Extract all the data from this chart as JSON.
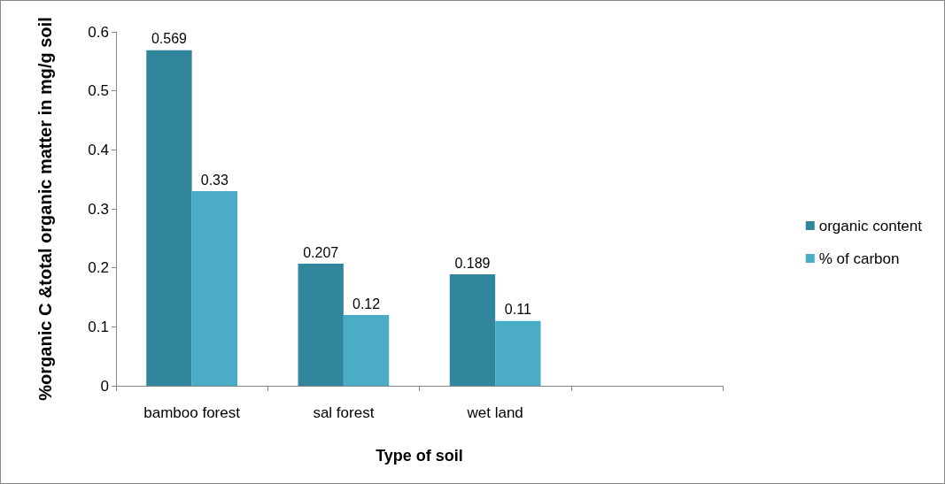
{
  "chart_data": {
    "type": "bar",
    "xlabel": "Type of soil",
    "ylabel": "%organic C &total organic matter in mg/g soil",
    "categories": [
      "bamboo forest",
      "sal forest",
      "wet land",
      null
    ],
    "series": [
      {
        "name": "organic content",
        "color": "#31859c",
        "values": [
          0.569,
          0.207,
          0.189,
          null
        ]
      },
      {
        "name": "% of carbon",
        "color": "#4bacc6",
        "values": [
          0.33,
          0.12,
          0.11,
          null
        ]
      }
    ],
    "ylim": [
      0,
      0.6
    ],
    "yticks": [
      0,
      0.1,
      0.2,
      0.3,
      0.4,
      0.5,
      0.6
    ],
    "grid": false,
    "legend": "right",
    "data_labels": true
  }
}
